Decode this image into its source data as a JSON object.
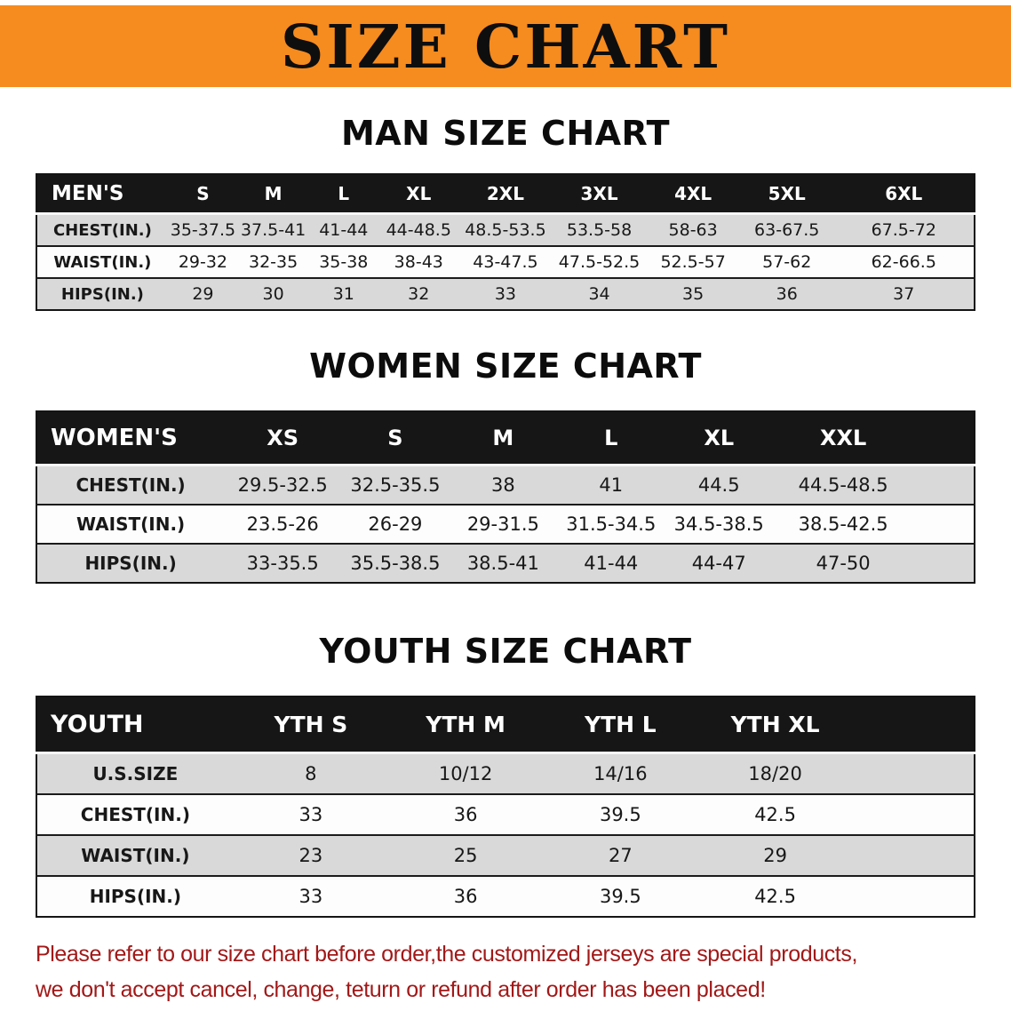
{
  "banner": {
    "title": "SIZE CHART"
  },
  "sections": {
    "men": {
      "heading": "MAN SIZE CHART",
      "table": {
        "header": [
          "MEN'S",
          "S",
          "M",
          "L",
          "XL",
          "2XL",
          "3XL",
          "4XL",
          "5XL",
          "6XL"
        ],
        "rows": [
          [
            "CHEST(IN.)",
            "35-37.5",
            "37.5-41",
            "41-44",
            "44-48.5",
            "48.5-53.5",
            "53.5-58",
            "58-63",
            "63-67.5",
            "67.5-72"
          ],
          [
            "WAIST(IN.)",
            "29-32",
            "32-35",
            "35-38",
            "38-43",
            "43-47.5",
            "47.5-52.5",
            "52.5-57",
            "57-62",
            "62-66.5"
          ],
          [
            "HIPS(IN.)",
            "29",
            "30",
            "31",
            "32",
            "33",
            "34",
            "35",
            "36",
            "37"
          ]
        ]
      }
    },
    "women": {
      "heading": "WOMEN SIZE CHART",
      "table": {
        "header": [
          "WOMEN'S",
          "XS",
          "S",
          "M",
          "L",
          "XL",
          "XXL"
        ],
        "rows": [
          [
            "CHEST(IN.)",
            "29.5-32.5",
            "32.5-35.5",
            "38",
            "41",
            "44.5",
            "44.5-48.5"
          ],
          [
            "WAIST(IN.)",
            "23.5-26",
            "26-29",
            "29-31.5",
            "31.5-34.5",
            "34.5-38.5",
            "38.5-42.5"
          ],
          [
            "HIPS(IN.)",
            "33-35.5",
            "35.5-38.5",
            "38.5-41",
            "41-44",
            "44-47",
            "47-50"
          ]
        ]
      }
    },
    "youth": {
      "heading": "YOUTH SIZE CHART",
      "table": {
        "header": [
          "YOUTH",
          "YTH S",
          "YTH M",
          "YTH L",
          "YTH XL"
        ],
        "rows": [
          [
            "U.S.SIZE",
            "8",
            "10/12",
            "14/16",
            "18/20"
          ],
          [
            "CHEST(IN.)",
            "33",
            "36",
            "39.5",
            "42.5"
          ],
          [
            "WAIST(IN.)",
            "23",
            "25",
            "27",
            "29"
          ],
          [
            "HIPS(IN.)",
            "33",
            "36",
            "39.5",
            "42.5"
          ]
        ]
      }
    }
  },
  "footer": {
    "line1": "Please refer to our size chart before order,the customized jerseys are special products,",
    "line2": "we don't accept cancel, change, teturn or refund after order has been placed!"
  },
  "colors": {
    "banner_bg": "#f68b1f",
    "table_header_bg": "#161616",
    "row_stripe": "#d9d9d9",
    "note_text": "#a21818"
  }
}
